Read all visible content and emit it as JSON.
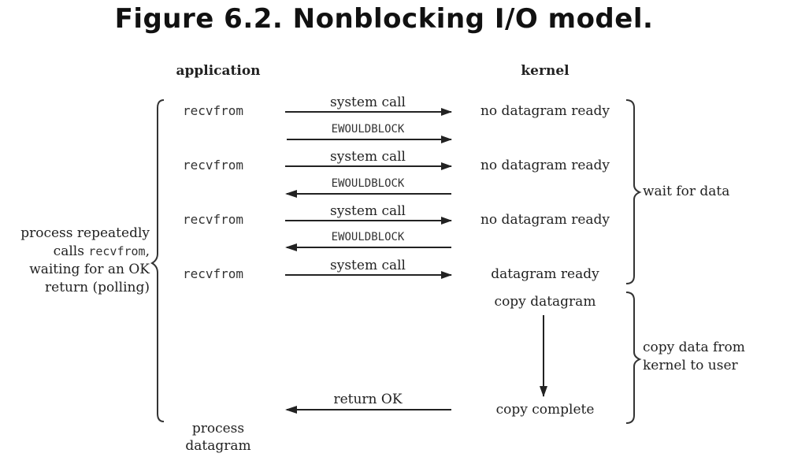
{
  "title": "Figure 6.2. Nonblocking I/O model.",
  "headers": {
    "application": "application",
    "kernel": "kernel"
  },
  "rows": [
    {
      "app": "recvfrom",
      "call": "system call",
      "reply": "EWOULDBLOCK",
      "kernel": "no datagram ready"
    },
    {
      "app": "recvfrom",
      "call": "system call",
      "reply": "EWOULDBLOCK",
      "kernel": "no datagram ready"
    },
    {
      "app": "recvfrom",
      "call": "system call",
      "reply": "EWOULDBLOCK",
      "kernel": "no datagram ready"
    },
    {
      "app": "recvfrom",
      "call": "system call",
      "kernel": "datagram ready"
    }
  ],
  "kernel_steps": {
    "copy": "copy datagram",
    "complete": "copy complete"
  },
  "return_label": "return OK",
  "process_label": {
    "line1": "process",
    "line2": "datagram"
  },
  "left_note": {
    "line1": "process repeatedly",
    "line2_prefix": "calls ",
    "line2_code": "recvfrom",
    "line2_suffix": ",",
    "line3": "waiting for an OK",
    "line4": "return (polling)"
  },
  "right_notes": {
    "wait": "wait for data",
    "copy_line1": "copy data from",
    "copy_line2": "kernel to user"
  }
}
